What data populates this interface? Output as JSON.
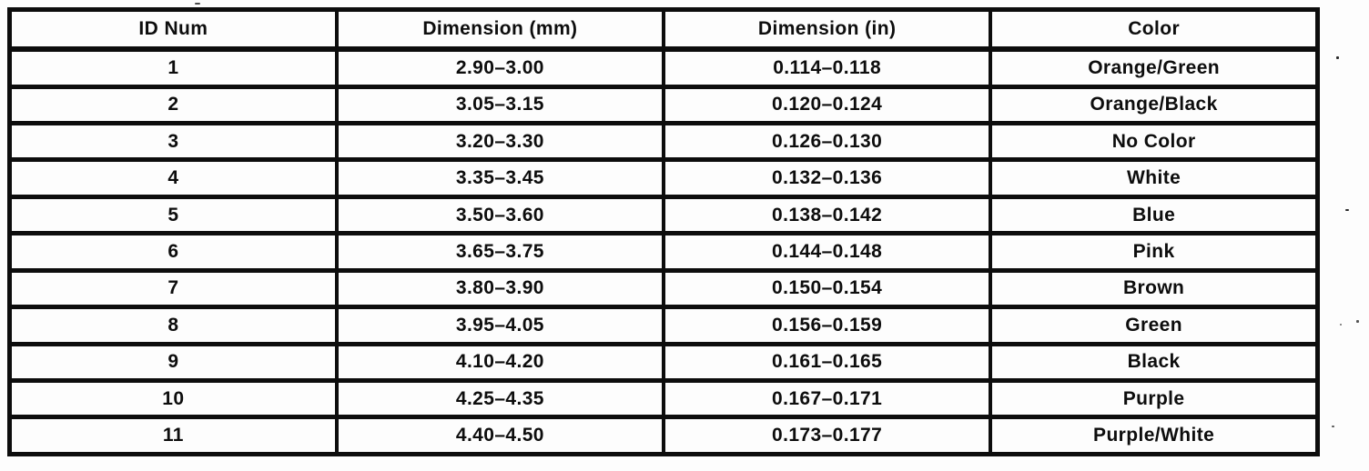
{
  "document": {
    "ink_color": "#0d0d0d",
    "paper_color": "#fdfdfd"
  },
  "table": {
    "columns": [
      "ID Num",
      "Dimension (mm)",
      "Dimension (in)",
      "Color"
    ],
    "rows": [
      [
        "1",
        "2.90–3.00",
        "0.114–0.118",
        "Orange/Green"
      ],
      [
        "2",
        "3.05–3.15",
        "0.120–0.124",
        "Orange/Black"
      ],
      [
        "3",
        "3.20–3.30",
        "0.126–0.130",
        "No Color"
      ],
      [
        "4",
        "3.35–3.45",
        "0.132–0.136",
        "White"
      ],
      [
        "5",
        "3.50–3.60",
        "0.138–0.142",
        "Blue"
      ],
      [
        "6",
        "3.65–3.75",
        "0.144–0.148",
        "Pink"
      ],
      [
        "7",
        "3.80–3.90",
        "0.150–0.154",
        "Brown"
      ],
      [
        "8",
        "3.95–4.05",
        "0.156–0.159",
        "Green"
      ],
      [
        "9",
        "4.10–4.20",
        "0.161–0.165",
        "Black"
      ],
      [
        "10",
        "4.25–4.35",
        "0.167–0.171",
        "Purple"
      ],
      [
        "11",
        "4.40–4.50",
        "0.173–0.177",
        "Purple/White"
      ]
    ]
  }
}
